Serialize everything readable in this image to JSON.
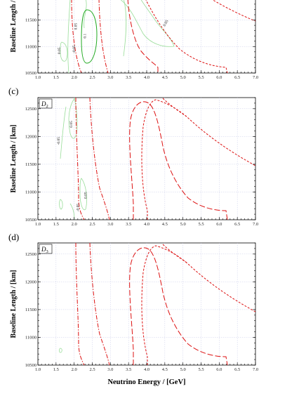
{
  "figure": {
    "xlabel": "Neutrino Energy / [GeV]",
    "ylabel": "Baseline Length / [km]"
  },
  "chart_data": [
    {
      "type": "contour",
      "panel": "b",
      "panel_label": "",
      "d_label": {
        "main": "",
        "sub": ""
      },
      "xlim": [
        1.0,
        7.0
      ],
      "ylim": [
        10500,
        12700
      ],
      "visible_y": [
        10500,
        11850
      ],
      "x_ticks": [
        "1.0",
        "1.5",
        "2.0",
        "2.5",
        "3.0",
        "3.5",
        "4.0",
        "4.5",
        "5.0",
        "5.5",
        "6.0",
        "6.5",
        "7.0"
      ],
      "y_ticks": [
        "10500",
        "11000",
        "11500"
      ],
      "grid": true,
      "contour_labels": [
        {
          "text": "0.05",
          "x": 1.62,
          "y": 10920,
          "rot": -90
        },
        {
          "text": "0.05",
          "x": 2.07,
          "y": 11380,
          "rot": -90
        },
        {
          "text": "-0.05",
          "x": 2.03,
          "y": 10950,
          "rot": -90
        },
        {
          "text": "0.1",
          "x": 2.33,
          "y": 11200,
          "rot": -90
        },
        {
          "text": "0.05",
          "x": 4.55,
          "y": 11430,
          "rot": -60
        }
      ]
    },
    {
      "type": "contour",
      "panel": "c",
      "panel_label": "(c)",
      "d_label": {
        "main": "D",
        "sub": "2"
      },
      "xlim": [
        1.0,
        7.0
      ],
      "ylim": [
        10500,
        12700
      ],
      "visible_y": [
        10500,
        12700
      ],
      "x_ticks": [
        "1.0",
        "1.5",
        "2.0",
        "2.5",
        "3.0",
        "3.5",
        "4.0",
        "4.5",
        "5.0",
        "5.5",
        "6.0",
        "6.5",
        "7.0"
      ],
      "y_ticks": [
        "10500",
        "11000",
        "11500",
        "12000",
        "12500"
      ],
      "grid": true,
      "contour_labels": [
        {
          "text": "0.05",
          "x": 1.95,
          "y": 12220,
          "rot": -90
        },
        {
          "text": "-0.05",
          "x": 1.6,
          "y": 11920,
          "rot": -90
        },
        {
          "text": "0.05",
          "x": 2.35,
          "y": 10940,
          "rot": -90
        },
        {
          "text": "-0.05",
          "x": 2.13,
          "y": 10720,
          "rot": -90
        }
      ]
    },
    {
      "type": "contour",
      "panel": "d",
      "panel_label": "(d)",
      "d_label": {
        "main": "D",
        "sub": "3"
      },
      "xlim": [
        1.0,
        7.0
      ],
      "ylim": [
        10500,
        12700
      ],
      "visible_y": [
        10500,
        12700
      ],
      "x_ticks": [
        "1.0",
        "1.5",
        "2.0",
        "2.5",
        "3.0",
        "3.5",
        "4.0",
        "4.5",
        "5.0",
        "5.5",
        "6.0",
        "6.5",
        "7.0"
      ],
      "y_ticks": [
        "10500",
        "11000",
        "11500",
        "12000",
        "12500"
      ],
      "grid": true,
      "contour_labels": []
    }
  ],
  "colors": {
    "red_curves": "#dd1111",
    "green_strong": "#22aa22",
    "green_light": "#99dd99",
    "grid": "#c9cce8"
  }
}
